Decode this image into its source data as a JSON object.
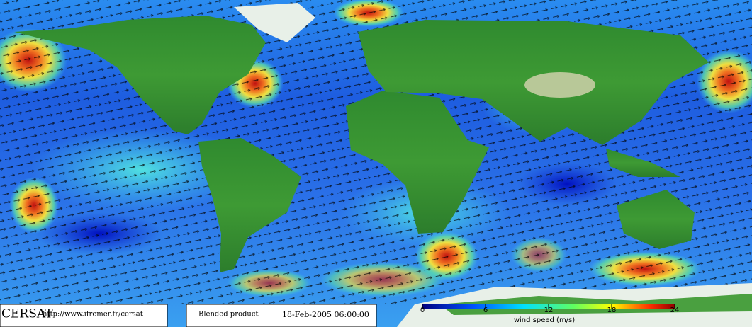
{
  "footer": {
    "agency": "CERSAT",
    "url": "http://www.ifremer.fr/cersat",
    "product": "Blended product",
    "date": "18-Feb-2005 06:00:00"
  },
  "colorbar": {
    "label": "wind speed (m/s)",
    "range": [
      0,
      24
    ],
    "ticks": [
      0,
      6,
      12,
      18,
      24
    ]
  }
}
